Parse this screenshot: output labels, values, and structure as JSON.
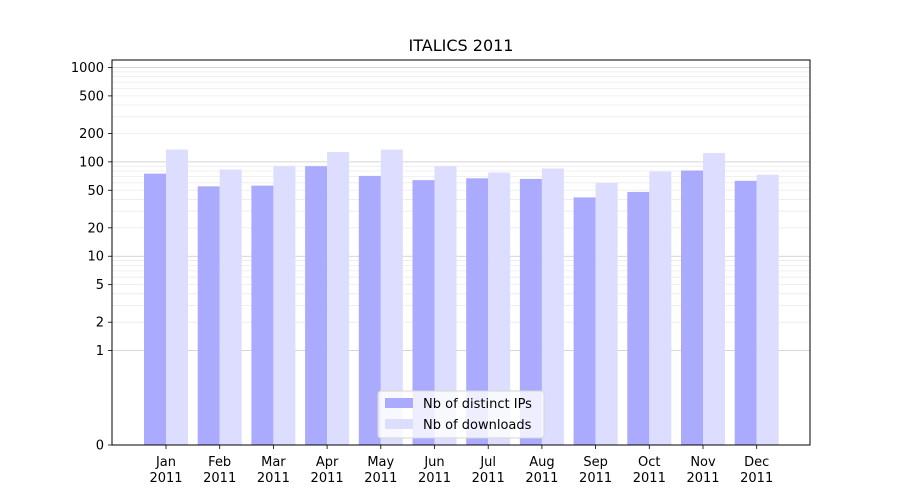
{
  "chart_data": {
    "type": "bar",
    "title": "ITALICS 2011",
    "xlabel": "",
    "ylabel": "",
    "y_scale": "symlog",
    "ylim": [
      0,
      1200
    ],
    "yticks": [
      0,
      1,
      2,
      5,
      10,
      20,
      50,
      100,
      200,
      500,
      1000
    ],
    "ytick_labels": [
      "0",
      "1",
      "2",
      "5",
      "10",
      "20",
      "50",
      "100",
      "200",
      "500",
      "1000"
    ],
    "categories": [
      "Jan\n2011",
      "Feb\n2011",
      "Mar\n2011",
      "Apr\n2011",
      "May\n2011",
      "Jun\n2011",
      "Jul\n2011",
      "Aug\n2011",
      "Sep\n2011",
      "Oct\n2011",
      "Nov\n2011",
      "Dec\n2011"
    ],
    "series": [
      {
        "name": "Nb of distinct IPs",
        "color": "#aaaaff",
        "values": [
          75,
          55,
          56,
          90,
          71,
          64,
          67,
          66,
          42,
          48,
          81,
          63
        ]
      },
      {
        "name": "Nb of downloads",
        "color": "#ddddff",
        "values": [
          135,
          83,
          90,
          127,
          135,
          90,
          77,
          85,
          60,
          79,
          124,
          73
        ]
      }
    ],
    "grid": true,
    "legend_position": "bottom-center"
  }
}
